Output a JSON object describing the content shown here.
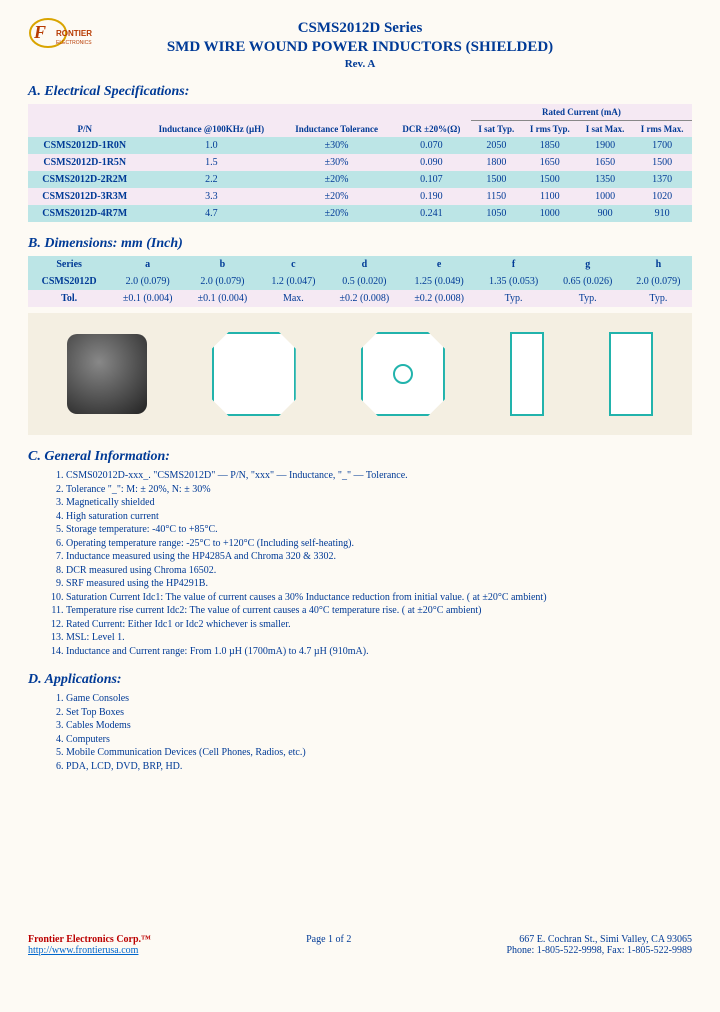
{
  "header": {
    "series": "CSMS2012D Series",
    "title": "SMD WIRE WOUND POWER INDUCTORS (SHIELDED)",
    "rev": "Rev. A"
  },
  "specs": {
    "title": "A. Electrical Specifications:",
    "cols": {
      "pn": "P/N",
      "ind": "Inductance @100KHz (µH)",
      "tol": "Inductance Tolerance",
      "dcr": "DCR ±20%(Ω)",
      "rated": "Rated Current (mA)",
      "isatt": "I sat Typ.",
      "irmst": "I rms Typ.",
      "isatm": "I sat Max.",
      "irmsm": "I rms Max."
    },
    "rows": [
      {
        "pn": "CSMS2012D-1R0N",
        "ind": "1.0",
        "tol": "±30%",
        "dcr": "0.070",
        "isatt": "2050",
        "irmst": "1850",
        "isatm": "1900",
        "irmsm": "1700",
        "hl": true
      },
      {
        "pn": "CSMS2012D-1R5N",
        "ind": "1.5",
        "tol": "±30%",
        "dcr": "0.090",
        "isatt": "1800",
        "irmst": "1650",
        "isatm": "1650",
        "irmsm": "1500",
        "hl": false
      },
      {
        "pn": "CSMS2012D-2R2M",
        "ind": "2.2",
        "tol": "±20%",
        "dcr": "0.107",
        "isatt": "1500",
        "irmst": "1500",
        "isatm": "1350",
        "irmsm": "1370",
        "hl": true
      },
      {
        "pn": "CSMS2012D-3R3M",
        "ind": "3.3",
        "tol": "±20%",
        "dcr": "0.190",
        "isatt": "1150",
        "irmst": "1100",
        "isatm": "1000",
        "irmsm": "1020",
        "hl": false
      },
      {
        "pn": "CSMS2012D-4R7M",
        "ind": "4.7",
        "tol": "±20%",
        "dcr": "0.241",
        "isatt": "1050",
        "irmst": "1000",
        "isatm": "900",
        "irmsm": "910",
        "hl": true
      }
    ]
  },
  "dims": {
    "title": "B. Dimensions: mm (Inch)",
    "cols": [
      "Series",
      "a",
      "b",
      "c",
      "d",
      "e",
      "f",
      "g",
      "h"
    ],
    "row": {
      "label": "CSMS2012D",
      "vals": [
        "2.0 (0.079)",
        "2.0 (0.079)",
        "1.2 (0.047)",
        "0.5 (0.020)",
        "1.25 (0.049)",
        "1.35 (0.053)",
        "0.65 (0.026)",
        "2.0 (0.079)"
      ]
    },
    "tol": {
      "label": "Tol.",
      "vals": [
        "±0.1 (0.004)",
        "±0.1 (0.004)",
        "Max.",
        "±0.2 (0.008)",
        "±0.2 (0.008)",
        "Typ.",
        "Typ.",
        "Typ."
      ]
    }
  },
  "gen": {
    "title": "C. General Information:",
    "items": [
      "CSMS02012D-xxx_. \"CSMS2012D\" — P/N, \"xxx\" — Inductance, \"_\" — Tolerance.",
      "Tolerance \"_\": M: ± 20%, N: ± 30%",
      "Magnetically shielded",
      "High saturation current",
      "Storage temperature: -40°C to +85°C.",
      "Operating temperature range: -25°C to +120°C (Including self-heating).",
      "Inductance measured using the HP4285A and Chroma 320 & 3302.",
      "DCR measured using Chroma 16502.",
      "SRF measured using the HP4291B.",
      "Saturation Current Idc1: The value of current causes a 30% Inductance reduction from initial value. ( at ±20°C ambient)",
      "Temperature rise current Idc2: The value of current causes a 40°C temperature rise. ( at ±20°C ambient)",
      "Rated Current: Either Idc1 or Idc2 whichever is smaller.",
      "MSL: Level 1.",
      "Inductance and Current range: From 1.0 µH (1700mA) to 4.7 µH (910mA)."
    ]
  },
  "apps": {
    "title": "D. Applications:",
    "items": [
      "Game Consoles",
      "Set Top Boxes",
      "Cables Modems",
      "Computers",
      "Mobile Communication Devices (Cell Phones, Radios, etc.)",
      "PDA, LCD, DVD, BRP, HD."
    ]
  },
  "footer": {
    "company": "Frontier Electronics Corp.™",
    "url": "http://www.frontierusa.com",
    "page": "Page 1 of 2",
    "addr": "667 E. Cochran St., Simi Valley, CA 93065",
    "phone": "Phone: 1-805-522-9998, Fax: 1-805-522-9989"
  }
}
